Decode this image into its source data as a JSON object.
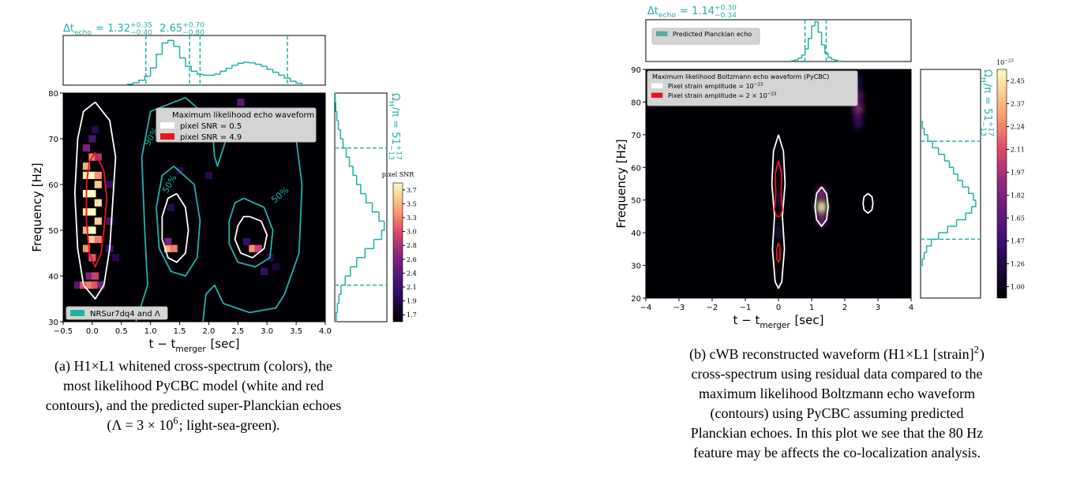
{
  "chart_data": [
    {
      "type": "heatmap",
      "xlabel": [
        "t − t",
        {
          "sub": "merger"
        },
        " [sec]"
      ],
      "ylabel": "Frequency [Hz]",
      "xlim": [
        -0.5,
        4.0
      ],
      "ylim": [
        30,
        80
      ],
      "xticks": [
        {
          "value": -0.5,
          "label": "−0.5"
        },
        {
          "value": 0,
          "label": "0.0"
        },
        0.5,
        {
          "value": 1,
          "label": "1.0"
        },
        1.5,
        {
          "value": 2,
          "label": "2.0"
        },
        2.5,
        {
          "value": 3,
          "label": "3.0"
        },
        3.5,
        {
          "value": 4,
          "label": "4.0"
        }
      ],
      "yticks": [
        30,
        40,
        50,
        60,
        70,
        80
      ],
      "colormap": "magma",
      "cells": [
        {
          "x": -0.25,
          "y": 38,
          "value": 2.4
        },
        {
          "x": -0.15,
          "y": 38,
          "value": 3.0
        },
        {
          "x": -0.05,
          "y": 38,
          "value": 3.2
        },
        {
          "x": 0.05,
          "y": 38,
          "value": 3.0
        },
        {
          "x": 0.15,
          "y": 38,
          "value": 2.6
        },
        {
          "x": -0.05,
          "y": 40,
          "value": 2.6
        },
        {
          "x": 0.05,
          "y": 40,
          "value": 2.9
        },
        {
          "x": 0.0,
          "y": 44,
          "value": 3.0
        },
        {
          "x": -0.1,
          "y": 46,
          "value": 3.3
        },
        {
          "x": 0.0,
          "y": 48,
          "value": 3.5
        },
        {
          "x": 0.1,
          "y": 48,
          "value": 3.2
        },
        {
          "x": -0.1,
          "y": 50,
          "value": 3.4
        },
        {
          "x": 0.0,
          "y": 50,
          "value": 3.7
        },
        {
          "x": 0.1,
          "y": 52,
          "value": 3.5
        },
        {
          "x": -0.1,
          "y": 54,
          "value": 3.6
        },
        {
          "x": 0.0,
          "y": 54,
          "value": 3.8
        },
        {
          "x": 0.1,
          "y": 56,
          "value": 3.6
        },
        {
          "x": -0.1,
          "y": 58,
          "value": 3.7
        },
        {
          "x": 0.0,
          "y": 58,
          "value": 3.8
        },
        {
          "x": 0.1,
          "y": 60,
          "value": 3.5
        },
        {
          "x": -0.1,
          "y": 62,
          "value": 3.6
        },
        {
          "x": 0.0,
          "y": 62,
          "value": 3.8
        },
        {
          "x": 0.1,
          "y": 62,
          "value": 3.3
        },
        {
          "x": -0.1,
          "y": 64,
          "value": 3.4
        },
        {
          "x": 0.0,
          "y": 66,
          "value": 3.2
        },
        {
          "x": 0.1,
          "y": 66,
          "value": 2.8
        },
        {
          "x": -0.1,
          "y": 68,
          "value": 2.6
        },
        {
          "x": 0.0,
          "y": 70,
          "value": 2.3
        },
        {
          "x": 0.05,
          "y": 72,
          "value": 2.0
        },
        {
          "x": 0.3,
          "y": 46,
          "value": 2.2
        },
        {
          "x": 0.4,
          "y": 44,
          "value": 2.0
        },
        {
          "x": 0.3,
          "y": 60,
          "value": 2.1
        },
        {
          "x": 0.3,
          "y": 52,
          "value": 2.3
        },
        {
          "x": 1.3,
          "y": 46,
          "value": 3.4
        },
        {
          "x": 1.4,
          "y": 46,
          "value": 3.2
        },
        {
          "x": 1.3,
          "y": 47.5,
          "value": 2.6
        },
        {
          "x": 2.75,
          "y": 46,
          "value": 3.3
        },
        {
          "x": 2.85,
          "y": 46,
          "value": 2.9
        },
        {
          "x": 2.65,
          "y": 47.5,
          "value": 2.1
        },
        {
          "x": 2.55,
          "y": 78,
          "value": 2.4
        },
        {
          "x": 1.5,
          "y": 63,
          "value": 2.0
        },
        {
          "x": 2.0,
          "y": 62,
          "value": 2.0
        },
        {
          "x": 1.35,
          "y": 55,
          "value": 2.0
        },
        {
          "x": 3.05,
          "y": 44,
          "value": 2.0
        },
        {
          "x": 3.15,
          "y": 42,
          "value": 1.9
        },
        {
          "x": 2.95,
          "y": 41,
          "value": 2.1
        }
      ],
      "contours": [
        {
          "color": "#20b2aa",
          "x": [
            0.75,
            0.95,
            0.9,
            0.85,
            1.0,
            1.6,
            2.05,
            2.1,
            2.15,
            2.3,
            3.0,
            3.5,
            3.6,
            3.55,
            3.3,
            3.15,
            2.7,
            2.25,
            2.1,
            1.95,
            1.9
          ],
          "y": [
            30,
            38,
            50,
            66,
            76,
            79,
            74,
            66,
            64,
            70,
            73,
            70,
            60,
            45,
            36,
            33,
            32,
            34,
            38,
            36,
            30
          ]
        },
        {
          "color": "#20b2aa",
          "x": [
            1.4,
            1.75,
            1.85,
            1.8,
            1.6,
            1.35,
            1.15,
            1.1,
            1.2,
            1.4
          ],
          "y": [
            64,
            60,
            52,
            44,
            40,
            41,
            46,
            55,
            62,
            64
          ]
        },
        {
          "color": "#20b2aa",
          "x": [
            2.6,
            2.95,
            3.1,
            3.05,
            2.8,
            2.5,
            2.35,
            2.35,
            2.45,
            2.6
          ],
          "y": [
            57,
            55,
            50,
            44,
            42,
            43,
            47,
            52,
            56,
            57
          ]
        },
        {
          "color": "#ffffff",
          "x": [
            0.05,
            0.3,
            0.4,
            0.35,
            0.3,
            0.2,
            0.05,
            -0.15,
            -0.25,
            -0.3,
            -0.25,
            -0.15,
            0.05
          ],
          "y": [
            78,
            74,
            66,
            56,
            46,
            38,
            35,
            38,
            46,
            58,
            70,
            76,
            78
          ]
        },
        {
          "color": "#e8141c",
          "x": [
            0.05,
            0.2,
            0.25,
            0.2,
            0.15,
            0.05,
            -0.05,
            -0.1,
            -0.1,
            -0.05,
            0.05
          ],
          "y": [
            67,
            63,
            57,
            50,
            45,
            42,
            45,
            52,
            60,
            65,
            67
          ]
        },
        {
          "color": "#ffffff",
          "x": [
            1.45,
            1.6,
            1.65,
            1.6,
            1.45,
            1.3,
            1.2,
            1.2,
            1.3,
            1.45
          ],
          "y": [
            58,
            55,
            50,
            45,
            43,
            44,
            48,
            53,
            57,
            58
          ]
        },
        {
          "color": "#ffffff",
          "x": [
            2.7,
            2.9,
            3.0,
            2.95,
            2.75,
            2.55,
            2.45,
            2.5,
            2.6,
            2.7
          ],
          "y": [
            53,
            52,
            49,
            46,
            44,
            45,
            48,
            51,
            53,
            53
          ]
        }
      ],
      "contour_labels": [
        "90%",
        "50%",
        "50%"
      ],
      "legend": {
        "title": "Maximum likelihood echo waveform",
        "entries": [
          {
            "label": [
              "pixel SNR = 0.5"
            ],
            "color": "#ffffff"
          },
          {
            "label": [
              "pixel SNR = 4.9"
            ],
            "color": "#e8141c"
          }
        ]
      },
      "legend2": {
        "entries": [
          {
            "label": [
              "NRSur7dq4 and Λ"
            ],
            "color": "#20b2aa"
          }
        ]
      },
      "top_hist": {
        "color": "#20b2aa",
        "bins": [
          0.6,
          0.7,
          0.8,
          0.9,
          1.0,
          1.1,
          1.2,
          1.3,
          1.4,
          1.5,
          1.6,
          1.7,
          1.8,
          1.9,
          2.0,
          2.1,
          2.2,
          2.3,
          2.4,
          2.5,
          2.6,
          2.7,
          2.8,
          2.9,
          3.0,
          3.1,
          3.2,
          3.3,
          3.4,
          3.5,
          3.6
        ],
        "values": [
          0.02,
          0.05,
          0.1,
          0.18,
          0.35,
          0.62,
          0.85,
          0.9,
          0.78,
          0.55,
          0.38,
          0.28,
          0.22,
          0.2,
          0.2,
          0.22,
          0.28,
          0.34,
          0.4,
          0.44,
          0.46,
          0.45,
          0.42,
          0.38,
          0.32,
          0.26,
          0.2,
          0.14,
          0.08,
          0.04
        ],
        "dashed": [
          0.92,
          1.67,
          1.85,
          3.35
        ]
      },
      "right_hist": {
        "color": "#20b2aa",
        "bins": [
          30,
          32,
          34,
          36,
          38,
          40,
          42,
          44,
          46,
          48,
          50,
          52,
          54,
          56,
          58,
          60,
          62,
          64,
          66,
          68,
          70,
          72,
          74,
          76,
          78,
          80
        ],
        "values": [
          0.03,
          0.05,
          0.08,
          0.12,
          0.2,
          0.3,
          0.42,
          0.58,
          0.75,
          0.9,
          0.95,
          0.85,
          0.72,
          0.6,
          0.5,
          0.42,
          0.35,
          0.28,
          0.22,
          0.16,
          0.11,
          0.07,
          0.04,
          0.02,
          0.01
        ],
        "dashed": [
          38,
          68
        ]
      },
      "annotation": [
        "Δt",
        {
          "sub": "echo"
        },
        " = 1.32",
        {
          "sup": "+0.35",
          "sub": "−0.40"
        },
        "  2.65",
        {
          "sup": "+0.70",
          "sub": "−0.80"
        }
      ],
      "right_annotation": [
        "Ω",
        {
          "sub": "H"
        },
        "/π = 51",
        {
          "sup": "+17",
          "sub": "−13"
        }
      ],
      "colorbar": {
        "label": "pixel SNR",
        "ticks": [
          3.7,
          3.5,
          3.3,
          {
            "value": 3,
            "label": "3.0"
          },
          2.8,
          2.6,
          2.4,
          2.1,
          1.9,
          1.7
        ]
      },
      "caption": [
        "(a) H1×L1 whitened cross-spectrum (colors), the",
        "most likelihood PyCBC model (white and red",
        "contours), and the predicted super-Planckian echoes",
        [
          "(Λ = 3 × 10",
          {
            "sup": "6"
          },
          "; light-sea-green)."
        ]
      ]
    },
    {
      "type": "heatmap",
      "xlabel": [
        "t − t",
        {
          "sub": "merger"
        },
        " [sec]"
      ],
      "ylabel": "Frequency [Hz]",
      "xlim": [
        -4,
        4
      ],
      "ylim": [
        20,
        90
      ],
      "xticks": [
        {
          "value": -4,
          "label": "−4"
        },
        {
          "value": -3,
          "label": "−3"
        },
        {
          "value": -2,
          "label": "−2"
        },
        {
          "value": -1,
          "label": "−1"
        },
        0,
        1,
        2,
        3,
        4
      ],
      "yticks": [
        20,
        30,
        40,
        50,
        60,
        70,
        80,
        90
      ],
      "colormap": "magma",
      "cells": [
        {
          "x": 1.3,
          "y": 44,
          "value": 1.8
        },
        {
          "x": 1.3,
          "y": 48,
          "value": 2.45
        },
        {
          "x": 1.3,
          "y": 52,
          "value": 1.9
        },
        {
          "x": 2.4,
          "y": 74,
          "value": 1.5
        },
        {
          "x": 2.4,
          "y": 78,
          "value": 1.9
        },
        {
          "x": 2.4,
          "y": 82,
          "value": 1.7
        },
        {
          "x": 2.4,
          "y": 86,
          "value": 1.3
        },
        {
          "x": 0.0,
          "y": 40,
          "value": 1.3
        },
        {
          "x": 0.0,
          "y": 50,
          "value": 1.3
        },
        {
          "x": 0.0,
          "y": 60,
          "value": 1.2
        }
      ],
      "contours": [
        {
          "color": "#ffffff",
          "x": [
            0,
            0.15,
            0.2,
            0.12,
            0.18,
            0.1,
            0,
            -0.1,
            -0.18,
            -0.12,
            -0.2,
            -0.15,
            0
          ],
          "y": [
            70,
            65,
            55,
            45,
            35,
            25,
            23,
            25,
            35,
            45,
            55,
            65,
            70
          ]
        },
        {
          "color": "#e8141c",
          "x": [
            0,
            0.1,
            0.08,
            0.12,
            0.05,
            -0.05,
            -0.12,
            -0.08,
            -0.1,
            0
          ],
          "y": [
            62,
            58,
            52,
            47,
            45,
            45,
            47,
            52,
            58,
            62
          ]
        },
        {
          "color": "#e8141c",
          "x": [
            0,
            0.05,
            0.05,
            0,
            -0.05,
            -0.05,
            0
          ],
          "y": [
            37,
            35,
            32,
            31,
            32,
            35,
            37
          ]
        },
        {
          "color": "#ffffff",
          "x": [
            1.3,
            1.45,
            1.5,
            1.45,
            1.3,
            1.15,
            1.1,
            1.15,
            1.3
          ],
          "y": [
            54,
            52,
            48,
            44,
            42,
            44,
            48,
            52,
            54
          ]
        },
        {
          "color": "#ffffff",
          "x": [
            2.7,
            2.82,
            2.85,
            2.82,
            2.7,
            2.58,
            2.55,
            2.58,
            2.7
          ],
          "y": [
            52,
            51,
            49,
            47,
            46,
            47,
            49,
            51,
            52
          ]
        }
      ],
      "legend": {
        "title": "Maximum likelihood Boltzmann echo waveform (PyCBC)",
        "entries": [
          {
            "label": [
              "Pixel strain amplitude = 10",
              {
                "sup": "−23"
              }
            ],
            "color": "#ffffff"
          },
          {
            "label": [
              "Pixel strain amplitude = 2 × 10",
              {
                "sup": "−23"
              }
            ],
            "color": "#e8141c"
          }
        ]
      },
      "legend2": {
        "entries": [
          {
            "label": [
              "Predicted Planckian echo"
            ],
            "color": "#5fa8a4"
          }
        ]
      },
      "top_hist": {
        "color": "#20b2aa",
        "bins": [
          0.4,
          0.5,
          0.6,
          0.7,
          0.8,
          0.9,
          1.0,
          1.1,
          1.2,
          1.3,
          1.4,
          1.5,
          1.6,
          1.7,
          1.8,
          1.9
        ],
        "values": [
          0.02,
          0.04,
          0.08,
          0.15,
          0.3,
          0.55,
          0.85,
          0.95,
          0.7,
          0.4,
          0.2,
          0.1,
          0.05,
          0.03,
          0.01
        ],
        "dashed": [
          0.8,
          1.44
        ]
      },
      "right_hist": {
        "color": "#20b2aa",
        "bins": [
          30,
          32,
          34,
          36,
          38,
          40,
          42,
          44,
          46,
          48,
          50,
          52,
          54,
          56,
          58,
          60,
          62,
          64,
          66,
          68,
          70,
          72,
          74
        ],
        "values": [
          0.03,
          0.06,
          0.1,
          0.18,
          0.3,
          0.45,
          0.6,
          0.75,
          0.85,
          0.92,
          0.88,
          0.8,
          0.7,
          0.62,
          0.55,
          0.48,
          0.4,
          0.3,
          0.2,
          0.12,
          0.06,
          0.03
        ],
        "dashed": [
          38,
          68
        ]
      },
      "annotation": [
        "Δt",
        {
          "sub": "echo"
        },
        " = 1.14",
        {
          "sup": "+0.30",
          "sub": "−0.34"
        }
      ],
      "right_annotation": [
        "Ω",
        {
          "sub": "H"
        },
        "/π = 51",
        {
          "sup": "+17",
          "sub": "−13"
        }
      ],
      "colorbar": {
        "offset": [
          "10",
          {
            "sup": "−23"
          }
        ],
        "ticks": [
          2.45,
          2.37,
          2.24,
          2.11,
          1.97,
          1.82,
          1.65,
          1.47,
          1.26,
          {
            "value": 1,
            "label": "1.00"
          }
        ]
      },
      "caption": [
        [
          "(b) cWB reconstructed waveform (H1×L1 [strain]",
          {
            "sup": "2"
          },
          ")"
        ],
        "cross-spectrum using residual data compared to the",
        "maximum likelihood Boltzmann echo waveform",
        "(contours) using PyCBC assuming predicted",
        "Planckian echoes. In this plot we see that the 80 Hz",
        "feature may be affects the co-localization analysis."
      ]
    }
  ]
}
